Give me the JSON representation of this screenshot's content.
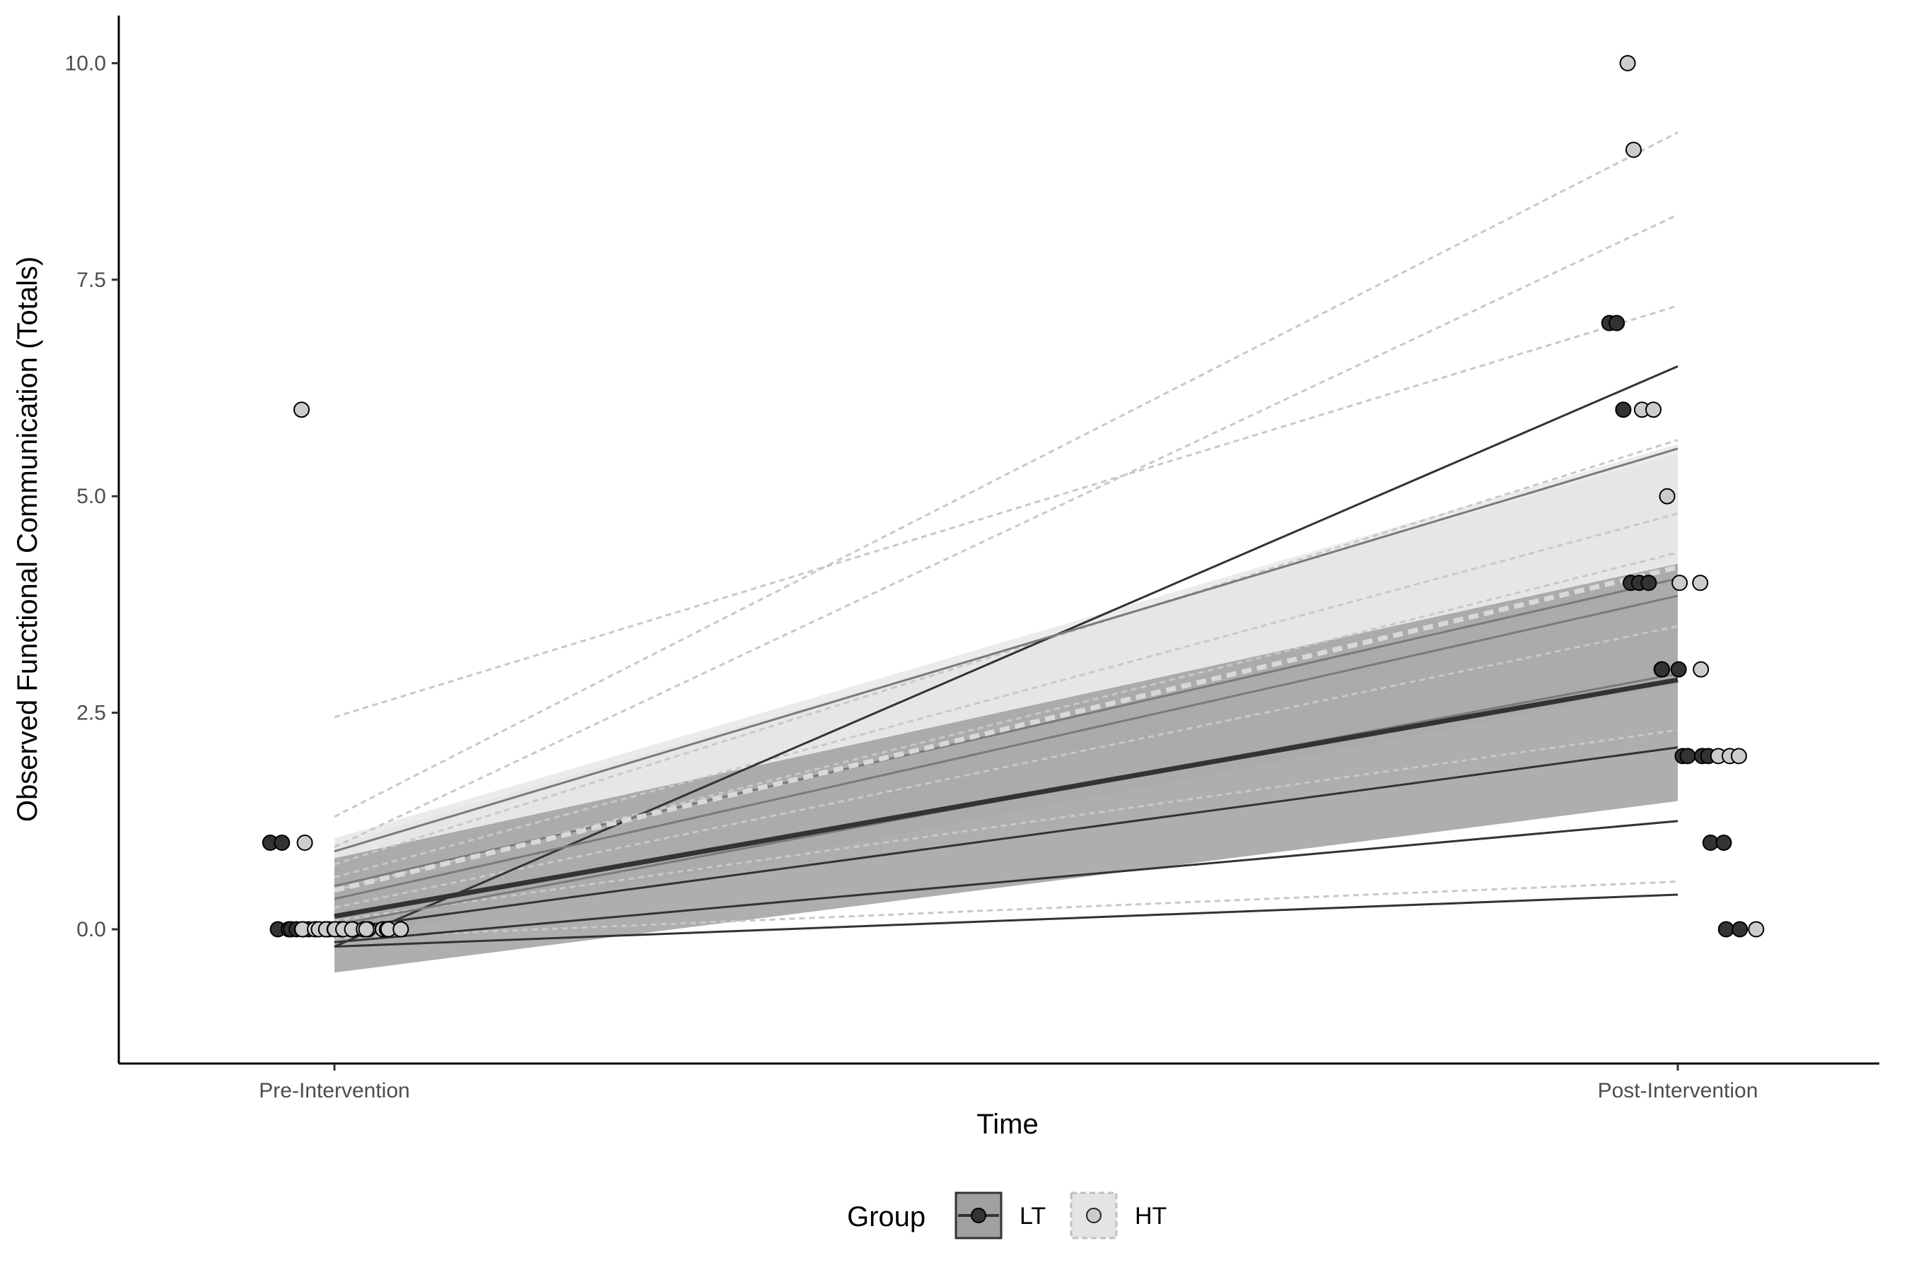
{
  "chart_data": {
    "type": "line",
    "title": "",
    "xlabel": "Time",
    "ylabel": "Observed Functional Communication (Totals)",
    "categories": [
      "Pre-Intervention",
      "Post-Intervention"
    ],
    "ylim": [
      -1.55,
      10.55
    ],
    "yticks": [
      0.0,
      2.5,
      5.0,
      7.5,
      10.0
    ],
    "ytick_labels": [
      "0.0",
      "2.5",
      "5.0",
      "7.5",
      "10.0"
    ],
    "grid": false,
    "legend": {
      "title": "Group",
      "position": "bottom",
      "entries": [
        {
          "label": "LT",
          "fill": "#a0a0a0",
          "line": "#333333",
          "dash": "solid",
          "point": "#333333"
        },
        {
          "label": "HT",
          "fill": "#e4e4e4",
          "line": "#c8c8c8",
          "dash": "dashed",
          "point": "#cccccc"
        }
      ]
    },
    "colors": {
      "lt_band": "#a0a0a0",
      "ht_band": "#e4e4e4",
      "lt_line": "#333333",
      "ht_line": "#c8c8c8",
      "lt_point": "#333333",
      "ht_point": "#cccccc"
    },
    "series": [
      {
        "name": "LT",
        "mean_fit": {
          "pre": 0.15,
          "post": 2.88
        },
        "ribbons": [
          {
            "pre_low": -0.5,
            "pre_high": 0.82,
            "post_low": 1.48,
            "post_high": 4.22
          }
        ],
        "individual_fits": [
          {
            "pre": -0.2,
            "post": 6.5
          },
          {
            "pre": 0.9,
            "post": 5.55
          },
          {
            "pre": 0.5,
            "post": 4.05
          },
          {
            "pre": 0.35,
            "post": 3.85
          },
          {
            "pre": 0.05,
            "post": 2.95
          },
          {
            "pre": 0.0,
            "post": 2.1
          },
          {
            "pre": -0.15,
            "post": 1.25
          },
          {
            "pre": -0.2,
            "post": 0.4
          }
        ],
        "pre_points": [
          1,
          1,
          0,
          0,
          0,
          0,
          0,
          0,
          0,
          0,
          0,
          0,
          0,
          0,
          0,
          0,
          0,
          0
        ],
        "post_points": [
          7,
          7,
          6,
          4,
          4,
          4,
          3,
          3,
          3,
          2,
          2,
          2,
          2,
          1,
          1,
          0,
          0
        ]
      },
      {
        "name": "HT",
        "mean_fit": {
          "pre": 0.45,
          "post": 4.18
        },
        "ribbons": [
          {
            "pre_low": -0.15,
            "pre_high": 1.05,
            "post_low": 2.82,
            "post_high": 5.6
          },
          {
            "pre_low": -0.1,
            "pre_high": 0.98,
            "post_low": 2.95,
            "post_high": 5.5
          }
        ],
        "individual_fits": [
          {
            "pre": 1.3,
            "post": 9.2
          },
          {
            "pre": 0.95,
            "post": 8.25
          },
          {
            "pre": 2.45,
            "post": 7.2
          },
          {
            "pre": 0.75,
            "post": 5.65
          },
          {
            "pre": 0.6,
            "post": 4.8
          },
          {
            "pre": 0.45,
            "post": 4.35
          },
          {
            "pre": 0.25,
            "post": 3.5
          },
          {
            "pre": 0.1,
            "post": 2.3
          },
          {
            "pre": -0.1,
            "post": 0.55
          }
        ],
        "pre_points": [
          6,
          1,
          0,
          0,
          0,
          0,
          0,
          0,
          0,
          0,
          0,
          0,
          0,
          0,
          0,
          0,
          0,
          0
        ],
        "post_points": [
          10,
          9,
          6,
          6,
          5,
          4,
          4,
          3,
          2,
          2,
          2,
          0
        ]
      }
    ]
  }
}
